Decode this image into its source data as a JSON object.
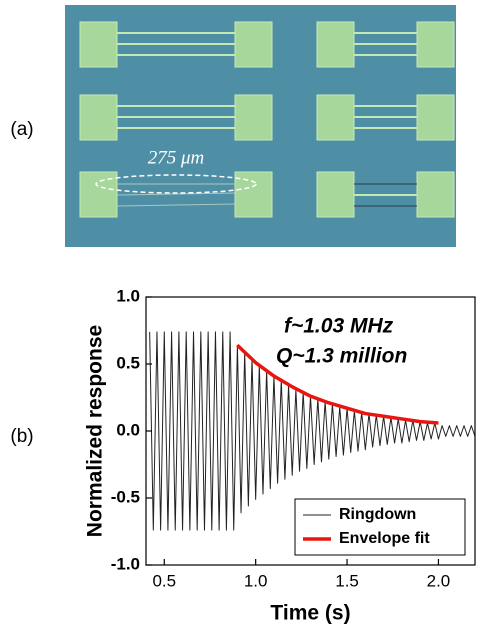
{
  "panel_a": {
    "label": "(a)",
    "scale_label": "275 μm"
  },
  "panel_b": {
    "label": "(b)"
  },
  "chart_data": {
    "type": "line",
    "xlabel": "Time (s)",
    "ylabel": "Normalized response",
    "annotations": [
      "f~1.03 MHz",
      "Q~1.3 million"
    ],
    "xlim": [
      0.4,
      2.2
    ],
    "ylim": [
      -1.0,
      1.0
    ],
    "xticks": [
      0.5,
      {
        "value": 1,
        "label": "1.0"
      },
      1.5,
      {
        "value": 2,
        "label": "2.0"
      }
    ],
    "yticks": [
      {
        "value": -1,
        "label": "-1.0"
      },
      -0.5,
      {
        "value": 0,
        "label": "0.0"
      },
      0.5,
      {
        "value": 1,
        "label": "1.0"
      }
    ],
    "legend": "lower right",
    "series": [
      {
        "name": "Ringdown",
        "color": "#222222",
        "x": [
          0.42,
          0.44,
          0.46,
          0.48,
          0.5,
          0.52,
          0.54,
          0.56,
          0.58,
          0.6,
          0.62,
          0.64,
          0.66,
          0.68,
          0.7,
          0.72,
          0.74,
          0.76,
          0.78,
          0.8,
          0.82,
          0.84,
          0.86,
          0.88,
          0.9,
          0.92,
          0.94,
          0.96,
          0.98,
          1.0,
          1.02,
          1.04,
          1.06,
          1.08,
          1.1,
          1.12,
          1.14,
          1.16,
          1.18,
          1.2,
          1.22,
          1.24,
          1.26,
          1.28,
          1.3,
          1.32,
          1.34,
          1.36,
          1.38,
          1.4,
          1.42,
          1.44,
          1.46,
          1.48,
          1.5,
          1.52,
          1.54,
          1.56,
          1.58,
          1.6,
          1.62,
          1.64,
          1.66,
          1.68,
          1.7,
          1.72,
          1.74,
          1.76,
          1.78,
          1.8,
          1.82,
          1.84,
          1.86,
          1.88,
          1.9,
          1.92,
          1.94,
          1.96,
          1.98,
          2.0,
          2.02,
          2.04,
          2.06,
          2.08,
          2.1,
          2.12,
          2.14,
          2.16,
          2.18,
          2.2
        ],
        "values": [
          0.74,
          -0.74,
          0.74,
          -0.74,
          0.74,
          -0.74,
          0.74,
          -0.74,
          0.74,
          -0.74,
          0.74,
          -0.74,
          0.74,
          -0.74,
          0.74,
          -0.74,
          0.74,
          -0.74,
          0.74,
          -0.74,
          0.74,
          -0.74,
          0.74,
          -0.74,
          0.64,
          -0.61,
          0.59,
          -0.56,
          0.54,
          -0.51,
          0.49,
          -0.47,
          0.45,
          -0.43,
          0.41,
          -0.39,
          0.38,
          -0.36,
          0.34,
          -0.33,
          0.31,
          -0.3,
          0.29,
          -0.28,
          0.26,
          -0.25,
          0.24,
          -0.23,
          0.22,
          -0.21,
          0.2,
          -0.19,
          0.18,
          -0.18,
          0.17,
          -0.16,
          0.15,
          -0.15,
          0.14,
          -0.14,
          0.13,
          -0.12,
          0.12,
          -0.11,
          0.11,
          -0.1,
          0.1,
          -0.09,
          0.09,
          -0.09,
          0.08,
          -0.08,
          0.08,
          -0.07,
          0.07,
          -0.07,
          0.06,
          -0.06,
          0.06,
          -0.06,
          0.04,
          -0.04,
          0.04,
          -0.04,
          0.04,
          -0.04,
          0.04,
          -0.04,
          0.04,
          -0.04
        ]
      },
      {
        "name": "Envelope fit",
        "color": "#e8160e",
        "x": [
          0.9,
          1.0,
          1.1,
          1.2,
          1.3,
          1.4,
          1.5,
          1.6,
          1.7,
          1.8,
          1.9,
          2.0
        ],
        "values": [
          0.64,
          0.51,
          0.41,
          0.33,
          0.26,
          0.21,
          0.17,
          0.13,
          0.11,
          0.09,
          0.07,
          0.06
        ]
      }
    ]
  }
}
